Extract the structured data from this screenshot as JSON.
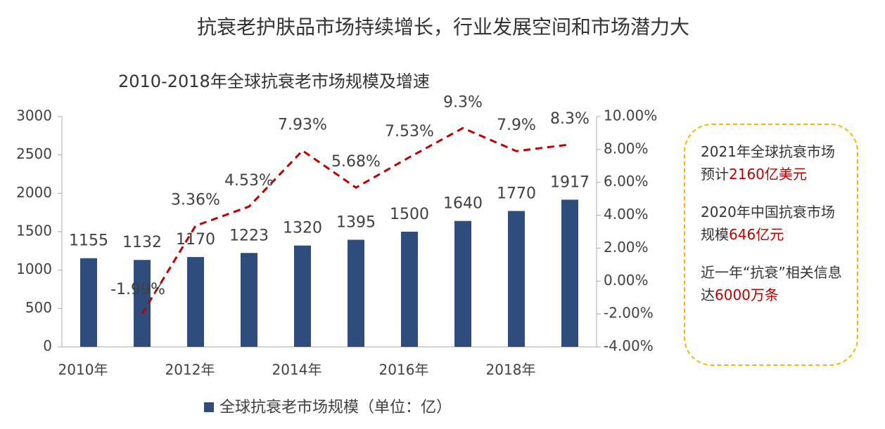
{
  "chart_data": {
    "type": "bar",
    "title": "抗衰老护肤品市场持续增长，行业发展空间和市场潜力大",
    "subtitle": "2010-2018年全球抗衰老市场规模及增速",
    "categories": [
      "2010年",
      null,
      "2012年",
      null,
      "2014年",
      null,
      "2016年",
      null,
      "2018年",
      null
    ],
    "series": [
      {
        "name": "全球抗衰老市场规模（单位：亿）",
        "color": "#2e4d7d",
        "type": "bar",
        "values": [
          1155,
          1132,
          1170,
          1223,
          1320,
          1395,
          1500,
          1640,
          1770,
          1917
        ]
      },
      {
        "color": "#c00000",
        "type": "line",
        "axis": "y2",
        "values": [
          null,
          -1.99,
          3.36,
          4.53,
          7.93,
          5.68,
          7.53,
          9.3,
          7.9,
          8.3
        ],
        "value_labels": [
          null,
          "-1.99%",
          "3.36%",
          "4.53%",
          "7.93%",
          "5.68%",
          "7.53%",
          "9.3%",
          "7.9%",
          "8.3%"
        ]
      }
    ],
    "ylim": [
      0,
      3000
    ],
    "yticks": [
      0,
      500,
      1000,
      1500,
      2000,
      2500,
      3000
    ],
    "y2lim": [
      -4,
      10
    ],
    "y2ticks": [
      {
        "value": -4,
        "label": "-4.00%"
      },
      {
        "value": -2,
        "label": "-2.00%"
      },
      {
        "value": 0,
        "label": "0.00%"
      },
      {
        "value": 2,
        "label": "2.00%"
      },
      {
        "value": 4,
        "label": "4.00%"
      },
      {
        "value": 6,
        "label": "6.00%"
      },
      {
        "value": 8,
        "label": "8.00%"
      },
      {
        "value": 10,
        "label": "10.00%"
      }
    ],
    "legend": "bottom",
    "annotations": [
      {
        "text": "2021年全球抗衰市场预计",
        "highlight": "2160亿美元"
      },
      {
        "text": "2020年中国抗衰市场规模",
        "highlight": "646亿元"
      },
      {
        "text": "近一年“抗衰”相关信息达",
        "highlight": "6000万条"
      }
    ]
  }
}
